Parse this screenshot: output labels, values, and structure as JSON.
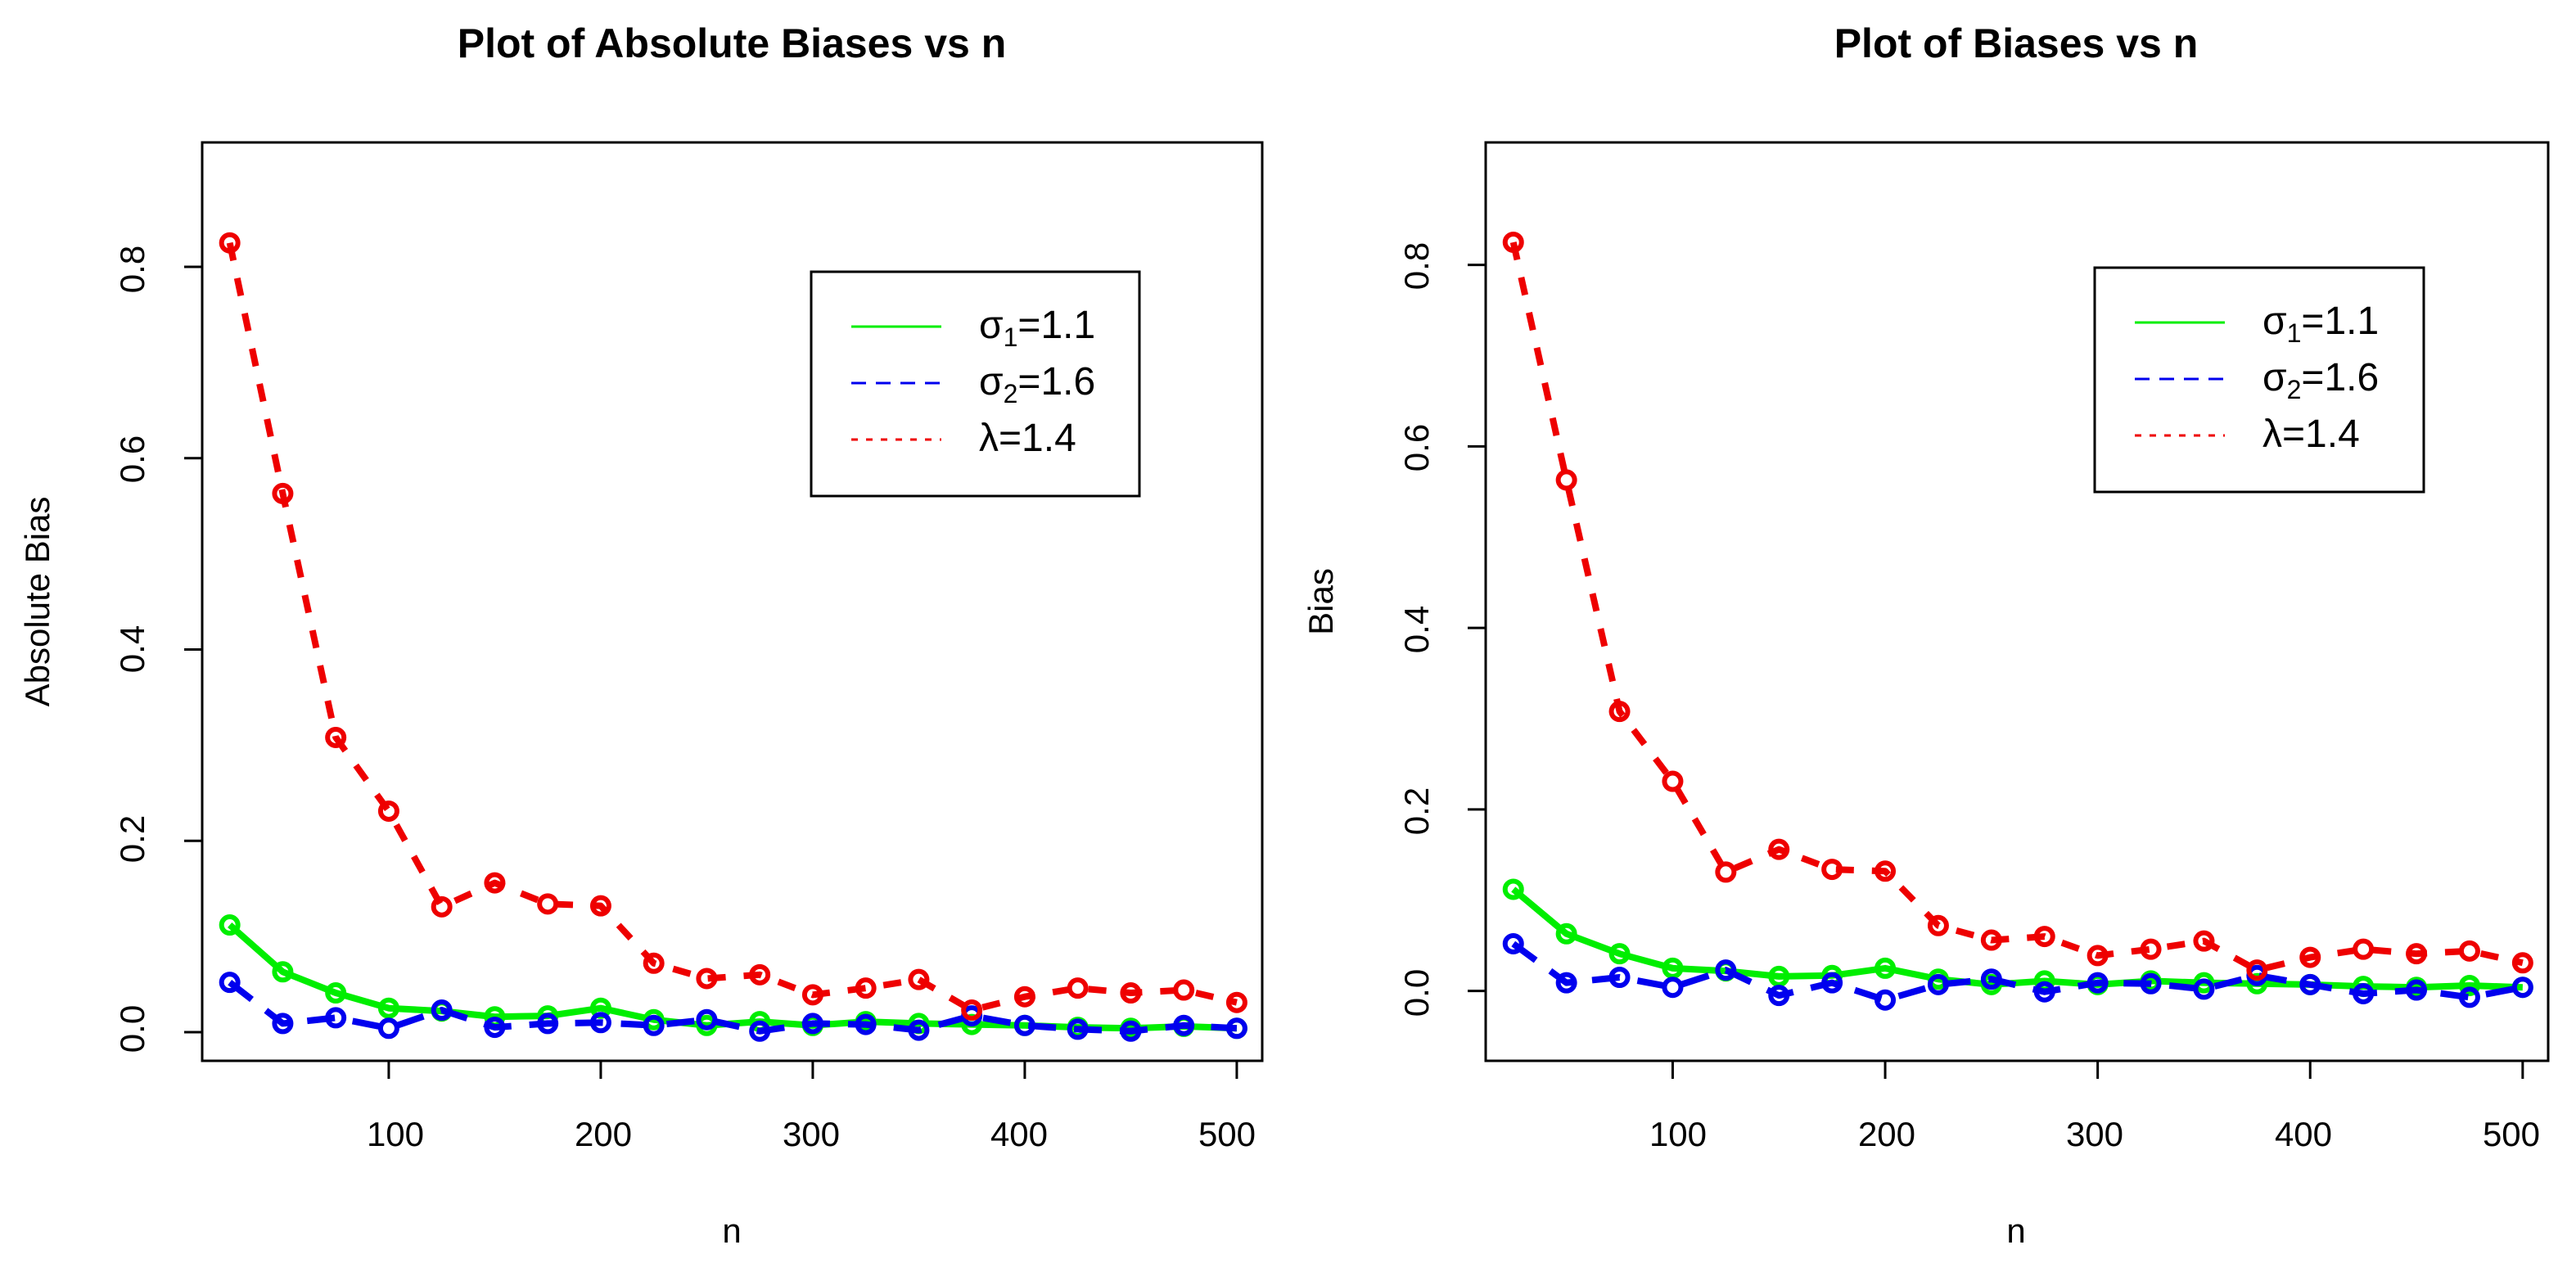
{
  "chart_data": [
    {
      "type": "line",
      "title": "Plot of Absolute Biases vs n",
      "xlabel": "n",
      "ylabel": "Absolute Bias",
      "xlim": [
        12,
        512
      ],
      "ylim": [
        -0.03,
        0.93
      ],
      "xticks": [
        100,
        200,
        300,
        400,
        500
      ],
      "xtick_labels": [
        "100",
        "200",
        "300",
        "400",
        "500"
      ],
      "yticks": [
        0.0,
        0.2,
        0.4,
        0.6,
        0.8
      ],
      "ytick_labels": [
        "0.0",
        "0.2",
        "0.4",
        "0.6",
        "0.8"
      ],
      "grid": false,
      "legend_position": "top-right",
      "x": [
        25,
        50,
        75,
        100,
        125,
        150,
        175,
        200,
        225,
        250,
        275,
        300,
        325,
        350,
        375,
        400,
        425,
        450,
        475,
        500
      ],
      "series": [
        {
          "name": "σ1=1.1",
          "legend": {
            "base": "σ",
            "sub": "1",
            "rest": "=1.1"
          },
          "color": "#00ee00",
          "dash": "solid",
          "values": [
            0.112,
            0.063,
            0.041,
            0.025,
            0.022,
            0.016,
            0.017,
            0.025,
            0.013,
            0.007,
            0.011,
            0.007,
            0.011,
            0.009,
            0.008,
            0.007,
            0.005,
            0.004,
            0.006,
            0.004
          ]
        },
        {
          "name": "σ2=1.6",
          "legend": {
            "base": "σ",
            "sub": "2",
            "rest": "=1.6"
          },
          "color": "#0000ee",
          "dash": "dashed",
          "values": [
            0.052,
            0.009,
            0.015,
            0.004,
            0.023,
            0.005,
            0.009,
            0.01,
            0.007,
            0.013,
            0.001,
            0.009,
            0.008,
            0.002,
            0.017,
            0.007,
            0.003,
            0.001,
            0.007,
            0.004
          ]
        },
        {
          "name": "λ=1.4",
          "legend": {
            "base": "λ",
            "sub": "",
            "rest": "=1.4"
          },
          "color": "#ee0000",
          "dash": "dotted",
          "values": [
            0.825,
            0.563,
            0.308,
            0.231,
            0.131,
            0.156,
            0.134,
            0.132,
            0.072,
            0.056,
            0.06,
            0.039,
            0.046,
            0.055,
            0.023,
            0.037,
            0.046,
            0.041,
            0.044,
            0.031
          ]
        }
      ]
    },
    {
      "type": "line",
      "title": "Plot of Biases vs n",
      "xlabel": "n",
      "ylabel": "Bias",
      "xlim": [
        12,
        512
      ],
      "ylim": [
        -0.077,
        0.935
      ],
      "xticks": [
        100,
        200,
        300,
        400,
        500
      ],
      "xtick_labels": [
        "100",
        "200",
        "300",
        "400",
        "500"
      ],
      "yticks": [
        0.0,
        0.2,
        0.4,
        0.6,
        0.8
      ],
      "ytick_labels": [
        "0.0",
        "0.2",
        "0.4",
        "0.6",
        "0.8"
      ],
      "grid": false,
      "legend_position": "top-right",
      "x": [
        25,
        50,
        75,
        100,
        125,
        150,
        175,
        200,
        225,
        250,
        275,
        300,
        325,
        350,
        375,
        400,
        425,
        450,
        475,
        500
      ],
      "series": [
        {
          "name": "σ1=1.1",
          "legend": {
            "base": "σ",
            "sub": "1",
            "rest": "=1.1"
          },
          "color": "#00ee00",
          "dash": "solid",
          "values": [
            0.112,
            0.063,
            0.041,
            0.025,
            0.022,
            0.016,
            0.017,
            0.025,
            0.013,
            0.007,
            0.011,
            0.007,
            0.011,
            0.009,
            0.008,
            0.007,
            0.005,
            0.004,
            0.006,
            0.004
          ]
        },
        {
          "name": "σ2=1.6",
          "legend": {
            "base": "σ",
            "sub": "2",
            "rest": "=1.6"
          },
          "color": "#0000ee",
          "dash": "dashed",
          "values": [
            0.052,
            0.009,
            0.015,
            0.004,
            0.023,
            -0.005,
            0.009,
            -0.01,
            0.007,
            0.013,
            -0.001,
            0.009,
            0.008,
            0.002,
            0.017,
            0.007,
            -0.003,
            0.001,
            -0.007,
            0.004
          ]
        },
        {
          "name": "λ=1.4",
          "legend": {
            "base": "λ",
            "sub": "",
            "rest": "=1.4"
          },
          "color": "#ee0000",
          "dash": "dotted",
          "values": [
            0.825,
            0.563,
            0.308,
            0.231,
            0.131,
            0.156,
            0.134,
            0.132,
            0.072,
            0.056,
            0.06,
            0.039,
            0.046,
            0.055,
            0.023,
            0.037,
            0.046,
            0.041,
            0.044,
            0.031
          ]
        }
      ]
    }
  ]
}
